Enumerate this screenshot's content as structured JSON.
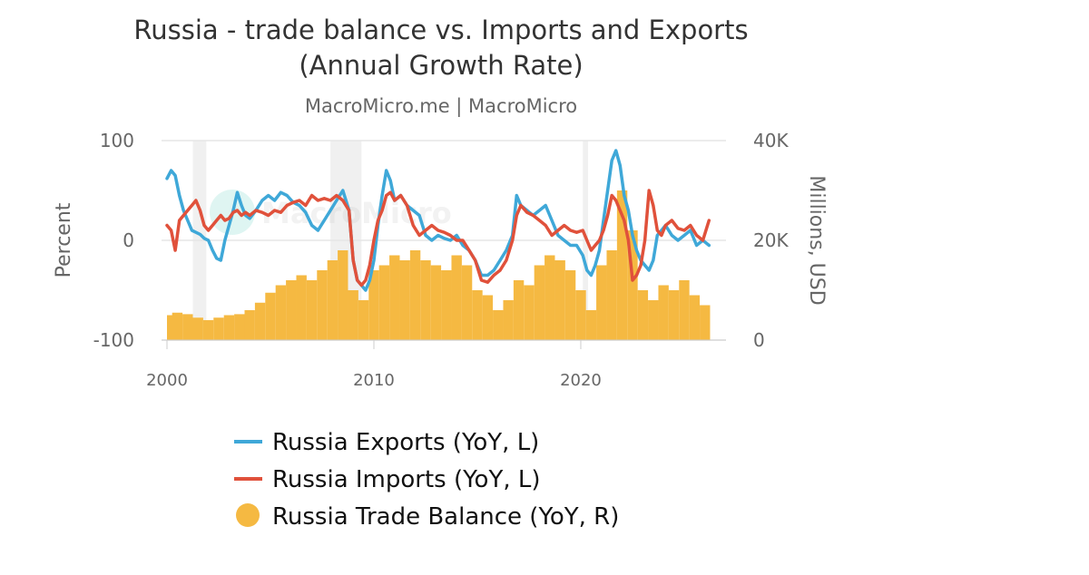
{
  "chart_data": {
    "type": "line",
    "title_line1": "Russia - trade balance vs. Imports and Exports",
    "title_line2": "(Annual Growth Rate)",
    "subtitle": "MacroMicro.me | MacroMicro",
    "watermark": "MacroMicro",
    "x_axis": {
      "min": 2000.0,
      "max": 2026.8,
      "ticks": [
        2000,
        2010,
        2020
      ],
      "tick_labels": [
        "2000",
        "2010",
        "2020"
      ]
    },
    "y_left": {
      "label": "Percent",
      "min": -100,
      "max": 100,
      "ticks": [
        -100,
        0,
        100
      ],
      "tick_labels": [
        "-100",
        "0",
        "100"
      ]
    },
    "y_right": {
      "label": "Millions, USD",
      "min": 0,
      "max": 40000,
      "ticks": [
        0,
        20000,
        40000
      ],
      "tick_labels": [
        "0",
        "20K",
        "40K"
      ]
    },
    "grid": true,
    "legend_position": "bottom",
    "recession_bands": [
      [
        2001.25,
        2001.9
      ],
      [
        2007.9,
        2009.4
      ],
      [
        2020.1,
        2020.35
      ]
    ],
    "series": [
      {
        "name": "Russia Exports (YoY, L)",
        "axis": "left",
        "type": "line",
        "color": "#3fa8d8",
        "x": [
          2000.0,
          2000.2,
          2000.4,
          2000.6,
          2000.8,
          2001.0,
          2001.2,
          2001.4,
          2001.6,
          2001.8,
          2002.0,
          2002.2,
          2002.4,
          2002.6,
          2002.8,
          2003.0,
          2003.2,
          2003.4,
          2003.6,
          2003.8,
          2004.0,
          2004.3,
          2004.6,
          2004.9,
          2005.2,
          2005.5,
          2005.8,
          2006.1,
          2006.4,
          2006.7,
          2007.0,
          2007.3,
          2007.6,
          2007.9,
          2008.2,
          2008.5,
          2008.8,
          2009.0,
          2009.2,
          2009.4,
          2009.6,
          2009.8,
          2010.0,
          2010.2,
          2010.4,
          2010.6,
          2010.8,
          2011.0,
          2011.3,
          2011.6,
          2011.9,
          2012.2,
          2012.5,
          2012.8,
          2013.1,
          2013.4,
          2013.7,
          2014.0,
          2014.3,
          2014.6,
          2014.9,
          2015.2,
          2015.5,
          2015.8,
          2016.1,
          2016.4,
          2016.7,
          2016.9,
          2017.1,
          2017.4,
          2017.7,
          2018.0,
          2018.3,
          2018.6,
          2018.9,
          2019.2,
          2019.5,
          2019.8,
          2020.1,
          2020.3,
          2020.5,
          2020.7,
          2020.9,
          2021.1,
          2021.3,
          2021.5,
          2021.7,
          2021.9,
          2022.1,
          2022.3,
          2022.5,
          2022.7,
          2022.9,
          2023.1,
          2023.3,
          2023.5,
          2023.7,
          2023.9,
          2024.1,
          2024.4,
          2024.7,
          2025.0,
          2025.3,
          2025.6,
          2025.9,
          2026.2
        ],
        "y": [
          62,
          70,
          65,
          45,
          30,
          20,
          10,
          8,
          6,
          2,
          0,
          -10,
          -18,
          -20,
          0,
          15,
          30,
          48,
          35,
          25,
          22,
          30,
          40,
          45,
          40,
          48,
          45,
          38,
          35,
          28,
          15,
          10,
          20,
          30,
          40,
          50,
          30,
          -20,
          -40,
          -45,
          -50,
          -40,
          -20,
          15,
          45,
          70,
          60,
          40,
          45,
          35,
          30,
          25,
          5,
          0,
          5,
          2,
          0,
          5,
          -5,
          -10,
          -20,
          -35,
          -35,
          -30,
          -20,
          -10,
          5,
          45,
          35,
          30,
          25,
          30,
          35,
          20,
          5,
          0,
          -5,
          -5,
          -15,
          -30,
          -35,
          -25,
          -10,
          20,
          50,
          80,
          90,
          75,
          45,
          30,
          5,
          -10,
          -20,
          -25,
          -30,
          -20,
          5,
          10,
          15,
          5,
          0,
          5,
          10,
          -5,
          0,
          -5
        ]
      },
      {
        "name": "Russia Imports (YoY, L)",
        "axis": "left",
        "type": "line",
        "color": "#e0513b",
        "x": [
          2000.0,
          2000.2,
          2000.4,
          2000.6,
          2000.8,
          2001.0,
          2001.2,
          2001.4,
          2001.6,
          2001.8,
          2002.0,
          2002.2,
          2002.4,
          2002.6,
          2002.8,
          2003.0,
          2003.2,
          2003.4,
          2003.6,
          2003.8,
          2004.0,
          2004.3,
          2004.6,
          2004.9,
          2005.2,
          2005.5,
          2005.8,
          2006.1,
          2006.4,
          2006.7,
          2007.0,
          2007.3,
          2007.6,
          2007.9,
          2008.2,
          2008.5,
          2008.8,
          2009.0,
          2009.2,
          2009.4,
          2009.6,
          2009.8,
          2010.0,
          2010.2,
          2010.4,
          2010.6,
          2010.8,
          2011.0,
          2011.3,
          2011.6,
          2011.9,
          2012.2,
          2012.5,
          2012.8,
          2013.1,
          2013.4,
          2013.7,
          2014.0,
          2014.3,
          2014.6,
          2014.9,
          2015.2,
          2015.5,
          2015.8,
          2016.1,
          2016.4,
          2016.7,
          2016.9,
          2017.1,
          2017.4,
          2017.7,
          2018.0,
          2018.3,
          2018.6,
          2018.9,
          2019.2,
          2019.5,
          2019.8,
          2020.1,
          2020.3,
          2020.5,
          2020.7,
          2020.9,
          2021.1,
          2021.3,
          2021.5,
          2021.7,
          2021.9,
          2022.1,
          2022.3,
          2022.5,
          2022.7,
          2022.9,
          2023.1,
          2023.3,
          2023.5,
          2023.7,
          2023.9,
          2024.1,
          2024.4,
          2024.7,
          2025.0,
          2025.3,
          2025.6,
          2025.9,
          2026.2
        ],
        "y": [
          15,
          10,
          -10,
          20,
          25,
          30,
          35,
          40,
          30,
          15,
          10,
          15,
          20,
          25,
          20,
          22,
          28,
          30,
          25,
          28,
          25,
          30,
          28,
          25,
          30,
          28,
          35,
          38,
          40,
          35,
          45,
          40,
          42,
          40,
          45,
          40,
          30,
          -20,
          -40,
          -45,
          -40,
          -25,
          0,
          20,
          30,
          45,
          48,
          40,
          45,
          35,
          15,
          5,
          10,
          15,
          10,
          8,
          5,
          0,
          0,
          -10,
          -20,
          -40,
          -42,
          -35,
          -30,
          -20,
          0,
          25,
          35,
          28,
          25,
          20,
          15,
          5,
          10,
          15,
          10,
          8,
          10,
          0,
          -10,
          -5,
          0,
          10,
          25,
          45,
          40,
          30,
          20,
          0,
          -40,
          -35,
          -25,
          0,
          50,
          35,
          10,
          5,
          15,
          20,
          12,
          10,
          15,
          5,
          0,
          20
        ]
      },
      {
        "name": "Russia Trade Balance (YoY, R)",
        "axis": "right",
        "type": "bar",
        "color": "#f5b942",
        "x": [
          2000.0,
          2000.5,
          2001.0,
          2001.5,
          2002.0,
          2002.5,
          2003.0,
          2003.5,
          2004.0,
          2004.5,
          2005.0,
          2005.5,
          2006.0,
          2006.5,
          2007.0,
          2007.5,
          2008.0,
          2008.5,
          2009.0,
          2009.5,
          2010.0,
          2010.5,
          2011.0,
          2011.5,
          2012.0,
          2012.5,
          2013.0,
          2013.5,
          2014.0,
          2014.5,
          2015.0,
          2015.5,
          2016.0,
          2016.5,
          2017.0,
          2017.5,
          2018.0,
          2018.5,
          2019.0,
          2019.5,
          2020.0,
          2020.5,
          2021.0,
          2021.5,
          2022.0,
          2022.5,
          2023.0,
          2023.5,
          2024.0,
          2024.5,
          2025.0,
          2025.5,
          2026.0
        ],
        "y": [
          5000,
          5500,
          5200,
          4500,
          4000,
          4500,
          5000,
          5200,
          6000,
          7500,
          9500,
          11000,
          12000,
          13000,
          12000,
          14000,
          16000,
          18000,
          10000,
          8000,
          14000,
          15000,
          17000,
          16000,
          18000,
          16000,
          15000,
          14000,
          17000,
          15000,
          10000,
          9000,
          6000,
          8000,
          12000,
          11000,
          15000,
          17000,
          16000,
          14000,
          10000,
          6000,
          15000,
          18000,
          30000,
          22000,
          10000,
          8000,
          11000,
          10000,
          12000,
          9000,
          7000
        ]
      }
    ]
  }
}
